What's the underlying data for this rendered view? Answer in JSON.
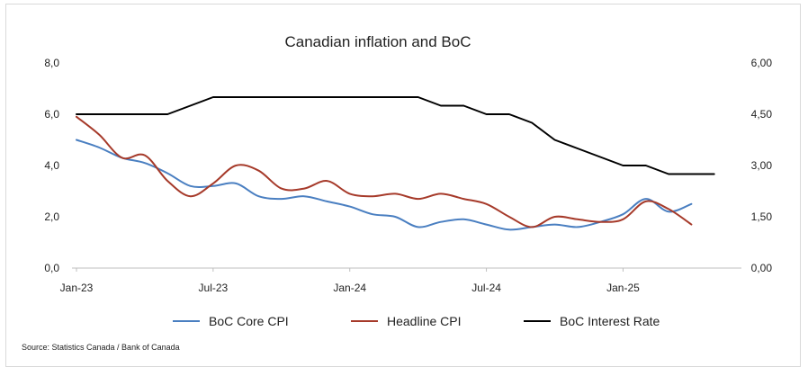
{
  "chart_data": {
    "type": "line",
    "title": "Canadian inflation and BoC",
    "source": "Source: Statistics Canada / Bank of Canada",
    "x_start": "2023-01",
    "x_tick_labels": [
      "Jan-23",
      "Jul-23",
      "Jan-24",
      "Jul-24",
      "Jan-25"
    ],
    "x_tick_months": [
      0,
      6,
      12,
      18,
      24
    ],
    "x_range_months": [
      0,
      29
    ],
    "y_left": {
      "min": 0,
      "max": 8,
      "ticks": [
        "0,0",
        "2,0",
        "4,0",
        "6,0",
        "8,0"
      ],
      "tick_values": [
        0,
        2,
        4,
        6,
        8
      ]
    },
    "y_right": {
      "min": 0,
      "max": 6,
      "ticks": [
        "0,00",
        "1,50",
        "3,00",
        "4,50",
        "6,00"
      ],
      "tick_values": [
        0,
        1.5,
        3,
        4.5,
        6
      ]
    },
    "grid": false,
    "legend_position": "bottom",
    "series": [
      {
        "name": "BoC Core CPI",
        "axis": "left",
        "color": "#4a7fc1",
        "values": [
          5.0,
          4.7,
          4.3,
          4.1,
          3.7,
          3.2,
          3.2,
          3.3,
          2.8,
          2.7,
          2.8,
          2.6,
          2.4,
          2.1,
          2.0,
          1.6,
          1.8,
          1.9,
          1.7,
          1.5,
          1.6,
          1.7,
          1.6,
          1.8,
          2.1,
          2.7,
          2.2,
          2.5
        ]
      },
      {
        "name": "Headline CPI",
        "axis": "left",
        "color": "#a63a2a",
        "values": [
          5.9,
          5.2,
          4.3,
          4.4,
          3.4,
          2.8,
          3.3,
          4.0,
          3.8,
          3.1,
          3.1,
          3.4,
          2.9,
          2.8,
          2.9,
          2.7,
          2.9,
          2.7,
          2.5,
          2.0,
          1.6,
          2.0,
          1.9,
          1.8,
          1.9,
          2.6,
          2.3,
          1.7
        ]
      },
      {
        "name": "BoC Interest Rate",
        "axis": "right",
        "color": "#000000",
        "x": [
          0,
          1,
          2,
          3,
          4,
          5,
          6,
          7,
          8,
          9,
          10,
          11,
          12,
          13,
          14,
          15,
          16,
          17,
          18,
          19,
          20,
          21,
          22,
          23,
          24,
          25,
          26,
          27,
          28
        ],
        "values": [
          4.5,
          4.5,
          4.5,
          4.5,
          4.5,
          4.75,
          5.0,
          5.0,
          5.0,
          5.0,
          5.0,
          5.0,
          5.0,
          5.0,
          5.0,
          5.0,
          4.75,
          4.75,
          4.5,
          4.5,
          4.25,
          3.75,
          3.5,
          3.25,
          3.0,
          3.0,
          2.75,
          2.75,
          2.75
        ]
      }
    ]
  }
}
